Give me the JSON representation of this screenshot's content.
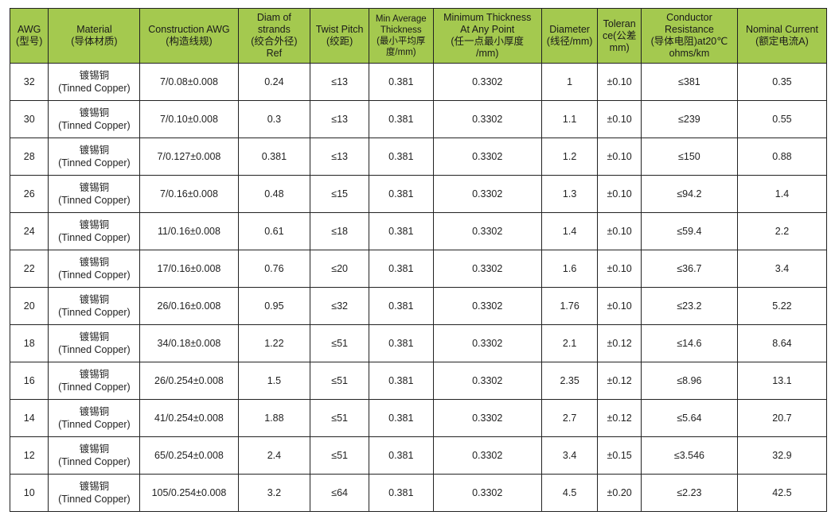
{
  "table": {
    "headers": [
      [
        "AWG",
        "(型号)"
      ],
      [
        "Material",
        "(导体材质)"
      ],
      [
        "Construction AWG",
        "(构造线规)"
      ],
      [
        "Diam of",
        "strands",
        "(绞合外径)",
        "Ref"
      ],
      [
        "Twist Pitch",
        "(绞距)"
      ],
      [
        "Min Average",
        "Thickness",
        "(最小平均厚",
        "度/mm)"
      ],
      [
        "Minimum Thickness",
        "At Any Point",
        "(任一点最小厚度",
        "/mm)"
      ],
      [
        "Diameter",
        "(线径/mm)"
      ],
      [
        "Toleran",
        "ce(公差",
        "mm)"
      ],
      [
        "Conductor",
        "Resistance",
        "(导体电阻)at20℃",
        "ohms/km"
      ],
      [
        "Nominal Current",
        "(额定电流A)"
      ]
    ],
    "material": [
      "镀锡铜",
      "(Tinned Copper)"
    ],
    "rows": [
      [
        "32",
        "7/0.08±0.008",
        "0.24",
        "≤13",
        "0.381",
        "0.3302",
        "1",
        "±0.10",
        "≤381",
        "0.35"
      ],
      [
        "30",
        "7/0.10±0.008",
        "0.3",
        "≤13",
        "0.381",
        "0.3302",
        "1.1",
        "±0.10",
        "≤239",
        "0.55"
      ],
      [
        "28",
        "7/0.127±0.008",
        "0.381",
        "≤13",
        "0.381",
        "0.3302",
        "1.2",
        "±0.10",
        "≤150",
        "0.88"
      ],
      [
        "26",
        "7/0.16±0.008",
        "0.48",
        "≤15",
        "0.381",
        "0.3302",
        "1.3",
        "±0.10",
        "≤94.2",
        "1.4"
      ],
      [
        "24",
        "11/0.16±0.008",
        "0.61",
        "≤18",
        "0.381",
        "0.3302",
        "1.4",
        "±0.10",
        "≤59.4",
        "2.2"
      ],
      [
        "22",
        "17/0.16±0.008",
        "0.76",
        "≤20",
        "0.381",
        "0.3302",
        "1.6",
        "±0.10",
        "≤36.7",
        "3.4"
      ],
      [
        "20",
        "26/0.16±0.008",
        "0.95",
        "≤32",
        "0.381",
        "0.3302",
        "1.76",
        "±0.10",
        "≤23.2",
        "5.22"
      ],
      [
        "18",
        "34/0.18±0.008",
        "1.22",
        "≤51",
        "0.381",
        "0.3302",
        "2.1",
        "±0.12",
        "≤14.6",
        "8.64"
      ],
      [
        "16",
        "26/0.254±0.008",
        "1.5",
        "≤51",
        "0.381",
        "0.3302",
        "2.35",
        "±0.12",
        "≤8.96",
        "13.1"
      ],
      [
        "14",
        "41/0.254±0.008",
        "1.88",
        "≤51",
        "0.381",
        "0.3302",
        "2.7",
        "±0.12",
        "≤5.64",
        "20.7"
      ],
      [
        "12",
        "65/0.254±0.008",
        "2.4",
        "≤51",
        "0.381",
        "0.3302",
        "3.4",
        "±0.15",
        "≤3.546",
        "32.9"
      ],
      [
        "10",
        "105/0.254±0.008",
        "3.2",
        "≤64",
        "0.381",
        "0.3302",
        "4.5",
        "±0.20",
        "≤2.23",
        "42.5"
      ]
    ]
  },
  "colors": {
    "header_bg": "#a4c94f",
    "border": "#222222"
  }
}
